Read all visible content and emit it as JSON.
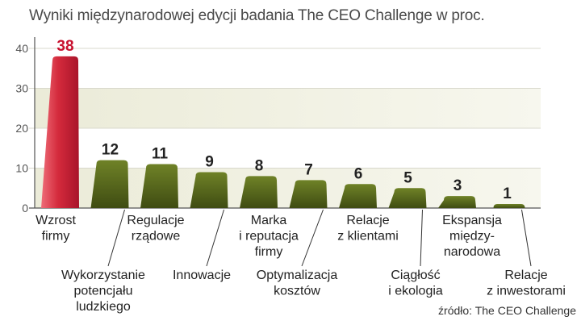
{
  "title": "Wyniki międzynarodowej edycji badania The CEO Challenge w proc.",
  "source": "źródło: The CEO Challenge",
  "colors": {
    "highlight_bar": "#d42a3c",
    "highlight_label": "#c8102e",
    "bar": "#5a6b1f",
    "band": "#ebebd8",
    "grid": "#d8d8cc",
    "axis": "#555555",
    "text": "#222222"
  },
  "chart_data": {
    "type": "bar",
    "title": "Wyniki międzynarodowej edycji badania The CEO Challenge w proc.",
    "xlabel": "",
    "ylabel": "",
    "ylim": [
      0,
      40
    ],
    "yticks": [
      0,
      10,
      20,
      30,
      40
    ],
    "grid": true,
    "categories": [
      "Wzrost firmy",
      "Wykorzystanie potencjału ludzkiego",
      "Regulacje rządowe",
      "Innowacje",
      "Marka i reputacja firmy",
      "Optymalizacja kosztów",
      "Relacje z klientami",
      "Ciągłość i ekologia",
      "Ekspansja między-narodowa",
      "Relacje z inwestorami"
    ],
    "category_label_lines": [
      [
        "Wzrost",
        "firmy"
      ],
      [
        "Wykorzystanie",
        "potencjału",
        "ludzkiego"
      ],
      [
        "Regulacje",
        "rządowe"
      ],
      [
        "Innowacje"
      ],
      [
        "Marka",
        "i reputacja",
        "firmy"
      ],
      [
        "Optymalizacja",
        "kosztów"
      ],
      [
        "Relacje",
        "z klientami"
      ],
      [
        "Ciągłość",
        "i ekologia"
      ],
      [
        "Ekspansja",
        "między-",
        "narodowa"
      ],
      [
        "Relacje",
        "z inwestorami"
      ]
    ],
    "values": [
      38,
      12,
      11,
      9,
      8,
      7,
      6,
      5,
      3,
      1
    ],
    "data_labels": [
      "38",
      "12",
      "11",
      "9",
      "8",
      "7",
      "6",
      "5",
      "3",
      "1"
    ],
    "highlight_index": 0
  }
}
